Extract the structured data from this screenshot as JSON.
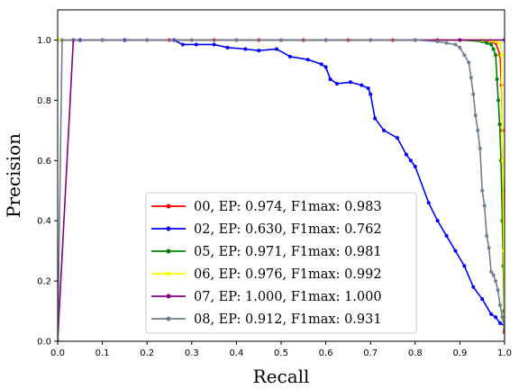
{
  "chart_data": {
    "type": "line",
    "xlabel": "Recall",
    "ylabel": "Precision",
    "xlim": [
      0.0,
      1.0
    ],
    "ylim": [
      0.0,
      1.1
    ],
    "xticks": [
      "0.0",
      "0.1",
      "0.2",
      "0.3",
      "0.4",
      "0.5",
      "0.6",
      "0.7",
      "0.8",
      "0.9",
      "1.0"
    ],
    "yticks": [
      "0.0",
      "0.2",
      "0.4",
      "0.6",
      "0.8",
      "1.0"
    ],
    "grid": false,
    "legend_position": "lower-center",
    "series": [
      {
        "name": "00, EP: 0.974, F1max: 0.983",
        "color": "#ff0000",
        "points": [
          [
            0.0,
            1.0
          ],
          [
            0.05,
            1.0
          ],
          [
            0.1,
            1.0
          ],
          [
            0.15,
            1.0
          ],
          [
            0.2,
            1.0
          ],
          [
            0.25,
            1.0
          ],
          [
            0.3,
            1.0
          ],
          [
            0.35,
            1.0
          ],
          [
            0.4,
            1.0
          ],
          [
            0.45,
            1.0
          ],
          [
            0.5,
            1.0
          ],
          [
            0.55,
            1.0
          ],
          [
            0.6,
            1.0
          ],
          [
            0.65,
            1.0
          ],
          [
            0.7,
            1.0
          ],
          [
            0.75,
            1.0
          ],
          [
            0.8,
            1.0
          ],
          [
            0.85,
            1.0
          ],
          [
            0.9,
            1.0
          ],
          [
            0.95,
            1.0
          ],
          [
            0.97,
            0.995
          ],
          [
            0.98,
            0.99
          ],
          [
            0.99,
            0.95
          ],
          [
            0.993,
            0.85
          ],
          [
            0.995,
            0.7
          ],
          [
            0.997,
            0.5
          ],
          [
            0.998,
            0.3
          ],
          [
            0.999,
            0.1
          ],
          [
            1.0,
            0.03
          ]
        ]
      },
      {
        "name": "02, EP: 0.630, F1max: 0.762",
        "color": "#0000ff",
        "points": [
          [
            0.0,
            1.0
          ],
          [
            0.05,
            1.0
          ],
          [
            0.1,
            1.0
          ],
          [
            0.15,
            1.0
          ],
          [
            0.2,
            1.0
          ],
          [
            0.26,
            1.0
          ],
          [
            0.28,
            0.985
          ],
          [
            0.31,
            0.985
          ],
          [
            0.35,
            0.985
          ],
          [
            0.38,
            0.975
          ],
          [
            0.42,
            0.97
          ],
          [
            0.45,
            0.965
          ],
          [
            0.49,
            0.97
          ],
          [
            0.52,
            0.945
          ],
          [
            0.56,
            0.935
          ],
          [
            0.59,
            0.92
          ],
          [
            0.6,
            0.91
          ],
          [
            0.61,
            0.87
          ],
          [
            0.625,
            0.855
          ],
          [
            0.655,
            0.86
          ],
          [
            0.68,
            0.85
          ],
          [
            0.695,
            0.84
          ],
          [
            0.7,
            0.82
          ],
          [
            0.71,
            0.74
          ],
          [
            0.73,
            0.7
          ],
          [
            0.76,
            0.675
          ],
          [
            0.78,
            0.62
          ],
          [
            0.79,
            0.6
          ],
          [
            0.8,
            0.58
          ],
          [
            0.83,
            0.46
          ],
          [
            0.85,
            0.4
          ],
          [
            0.87,
            0.35
          ],
          [
            0.89,
            0.3
          ],
          [
            0.91,
            0.25
          ],
          [
            0.93,
            0.18
          ],
          [
            0.95,
            0.14
          ],
          [
            0.97,
            0.09
          ],
          [
            0.98,
            0.08
          ],
          [
            0.99,
            0.06
          ],
          [
            1.0,
            0.05
          ]
        ]
      },
      {
        "name": "05, EP: 0.971, F1max: 0.981",
        "color": "#008000",
        "points": [
          [
            0.0,
            1.0
          ],
          [
            0.1,
            1.0
          ],
          [
            0.2,
            1.0
          ],
          [
            0.3,
            1.0
          ],
          [
            0.4,
            1.0
          ],
          [
            0.5,
            1.0
          ],
          [
            0.6,
            1.0
          ],
          [
            0.7,
            1.0
          ],
          [
            0.8,
            1.0
          ],
          [
            0.9,
            1.0
          ],
          [
            0.95,
            0.995
          ],
          [
            0.96,
            0.99
          ],
          [
            0.97,
            0.985
          ],
          [
            0.975,
            0.97
          ],
          [
            0.98,
            0.95
          ],
          [
            0.983,
            0.87
          ],
          [
            0.986,
            0.8
          ],
          [
            0.989,
            0.72
          ],
          [
            0.992,
            0.6
          ],
          [
            0.995,
            0.4
          ],
          [
            0.997,
            0.25
          ],
          [
            0.999,
            0.1
          ],
          [
            1.0,
            0.04
          ]
        ]
      },
      {
        "name": "06, EP: 0.976, F1max: 0.992",
        "color": "#ffff00",
        "points": [
          [
            0.0,
            1.0
          ],
          [
            0.1,
            1.0
          ],
          [
            0.2,
            1.0
          ],
          [
            0.3,
            1.0
          ],
          [
            0.4,
            1.0
          ],
          [
            0.5,
            1.0
          ],
          [
            0.6,
            1.0
          ],
          [
            0.7,
            1.0
          ],
          [
            0.8,
            1.0
          ],
          [
            0.9,
            1.0
          ],
          [
            0.95,
            1.0
          ],
          [
            0.97,
            0.998
          ],
          [
            0.98,
            0.995
          ],
          [
            0.99,
            0.99
          ],
          [
            0.993,
            0.95
          ],
          [
            0.996,
            0.6
          ],
          [
            0.998,
            0.3
          ],
          [
            1.0,
            0.05
          ]
        ]
      },
      {
        "name": "07, EP: 1.000, F1max: 1.000",
        "color": "#800080",
        "points": [
          [
            0.0,
            0.0
          ],
          [
            0.035,
            1.0
          ],
          [
            0.1,
            1.0
          ],
          [
            0.2,
            1.0
          ],
          [
            0.3,
            1.0
          ],
          [
            0.4,
            1.0
          ],
          [
            0.5,
            1.0
          ],
          [
            0.6,
            1.0
          ],
          [
            0.7,
            1.0
          ],
          [
            0.8,
            1.0
          ],
          [
            0.9,
            1.0
          ],
          [
            1.0,
            1.0
          ]
        ]
      },
      {
        "name": "08, EP: 0.912, F1max: 0.931",
        "color": "#708090",
        "points": [
          [
            0.0,
            0.0
          ],
          [
            0.01,
            1.0
          ],
          [
            0.1,
            1.0
          ],
          [
            0.2,
            1.0
          ],
          [
            0.3,
            1.0
          ],
          [
            0.4,
            1.0
          ],
          [
            0.5,
            1.0
          ],
          [
            0.6,
            1.0
          ],
          [
            0.7,
            1.0
          ],
          [
            0.8,
            1.0
          ],
          [
            0.85,
            0.995
          ],
          [
            0.87,
            0.99
          ],
          [
            0.89,
            0.985
          ],
          [
            0.9,
            0.975
          ],
          [
            0.91,
            0.95
          ],
          [
            0.92,
            0.925
          ],
          [
            0.925,
            0.875
          ],
          [
            0.93,
            0.82
          ],
          [
            0.935,
            0.75
          ],
          [
            0.94,
            0.7
          ],
          [
            0.945,
            0.64
          ],
          [
            0.95,
            0.5
          ],
          [
            0.955,
            0.45
          ],
          [
            0.96,
            0.35
          ],
          [
            0.965,
            0.31
          ],
          [
            0.97,
            0.23
          ],
          [
            0.975,
            0.22
          ],
          [
            0.98,
            0.2
          ],
          [
            0.985,
            0.17
          ],
          [
            0.99,
            0.12
          ],
          [
            0.995,
            0.08
          ],
          [
            1.0,
            0.04
          ]
        ]
      }
    ]
  }
}
